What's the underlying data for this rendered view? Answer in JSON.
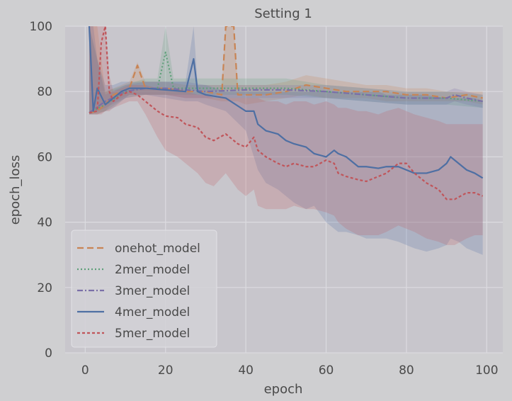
{
  "chart_data": {
    "type": "line",
    "title": "Setting 1",
    "xlabel": "epoch",
    "ylabel": "epoch_loss",
    "xlim": [
      -5,
      104
    ],
    "ylim": [
      0,
      100
    ],
    "xticks": [
      0,
      20,
      40,
      60,
      80,
      100
    ],
    "yticks": [
      0,
      20,
      40,
      60,
      80,
      100
    ],
    "grid": true,
    "legend_position": "lower-left",
    "series": [
      {
        "name": "onehot_model",
        "color": "#c88454",
        "dash": "dashed",
        "x": [
          1,
          3,
          5,
          7,
          9,
          11,
          13,
          15,
          17,
          20,
          25,
          30,
          34,
          35,
          36,
          37,
          38,
          40,
          45,
          50,
          55,
          60,
          65,
          70,
          75,
          80,
          85,
          90,
          95,
          99
        ],
        "y": [
          73.5,
          74,
          76,
          79,
          80,
          81,
          88,
          81,
          81,
          81,
          80,
          80,
          79,
          100,
          100,
          100,
          79,
          79,
          79,
          80,
          82,
          81,
          80,
          80,
          80,
          79,
          79,
          78,
          79,
          78
        ],
        "band_upper": [
          100,
          100,
          80,
          81,
          82,
          83,
          89,
          83,
          83,
          83,
          82,
          82,
          82,
          100,
          100,
          100,
          82,
          82,
          82,
          83,
          85,
          84,
          83,
          82,
          82,
          81,
          81,
          80,
          80,
          80
        ],
        "band_lower": [
          73,
          73,
          74,
          77,
          78,
          79,
          79,
          79,
          79,
          79,
          78,
          78,
          77,
          77,
          77,
          77,
          77,
          76,
          77,
          78,
          79,
          78,
          78,
          78,
          77,
          77,
          77,
          77,
          77,
          76
        ]
      },
      {
        "name": "2mer_model",
        "color": "#5fa07a",
        "dash": "dotted",
        "x": [
          1,
          5,
          10,
          15,
          18,
          20,
          22,
          25,
          30,
          40,
          50,
          60,
          70,
          80,
          90,
          99
        ],
        "y": [
          73.5,
          76,
          80,
          81,
          81,
          92,
          81,
          81,
          81,
          81,
          81,
          80,
          79,
          78,
          78,
          77
        ],
        "band_upper": [
          100,
          80,
          82,
          84,
          84,
          100,
          84,
          84,
          84,
          84,
          84,
          82,
          81,
          80,
          80,
          79
        ],
        "band_lower": [
          73,
          74,
          78,
          79,
          79,
          79,
          79,
          79,
          79,
          79,
          79,
          78,
          77,
          76,
          76,
          75
        ]
      },
      {
        "name": "3mer_model",
        "color": "#7a6fa8",
        "dash": "dashdot",
        "x": [
          1,
          5,
          10,
          15,
          20,
          25,
          30,
          40,
          50,
          60,
          70,
          80,
          90,
          92,
          95,
          99
        ],
        "y": [
          73.5,
          77,
          80,
          81,
          81,
          80.5,
          80,
          80.5,
          80.5,
          80,
          79,
          78,
          78,
          79,
          78,
          77
        ],
        "band_upper": [
          100,
          79,
          82,
          83,
          83,
          83,
          82,
          82,
          82,
          82,
          81,
          80,
          80,
          81,
          80,
          79
        ],
        "band_lower": [
          73,
          75,
          78,
          79,
          79,
          78,
          78,
          78,
          78,
          78,
          77,
          76,
          76,
          77,
          76,
          75
        ]
      },
      {
        "name": "4mer_model",
        "color": "#4e6fa3",
        "dash": "solid",
        "x": [
          1,
          2,
          3,
          5,
          7,
          9,
          11,
          13,
          15,
          20,
          25,
          27,
          28,
          30,
          35,
          40,
          42,
          43,
          45,
          48,
          50,
          52,
          55,
          57,
          60,
          62,
          63,
          65,
          68,
          70,
          73,
          75,
          78,
          80,
          82,
          85,
          88,
          90,
          91,
          93,
          95,
          97,
          99
        ],
        "y": [
          100,
          74,
          81,
          76,
          78,
          80,
          81,
          81,
          81,
          80.5,
          80,
          90,
          80,
          79,
          78,
          74,
          74,
          70,
          68,
          67,
          65,
          64,
          63,
          61,
          60,
          62,
          61,
          60,
          57,
          57,
          56.5,
          57,
          57,
          56,
          55,
          55,
          56,
          58,
          60,
          58,
          56,
          55,
          53.5
        ],
        "band_upper": [
          100,
          100,
          90,
          82,
          82,
          83,
          83,
          83,
          83,
          83,
          83,
          100,
          82,
          82,
          80,
          80,
          80,
          80,
          80,
          80,
          80,
          80,
          80,
          80,
          80,
          80,
          80,
          80,
          80,
          80,
          80,
          79,
          79,
          79,
          79,
          79,
          78,
          78,
          78,
          78,
          78,
          78,
          77
        ],
        "band_lower": [
          73,
          73,
          73,
          74,
          75,
          77,
          79,
          79,
          79,
          78,
          77,
          77,
          77,
          76,
          74,
          68,
          60,
          56,
          52,
          50,
          48,
          46,
          44,
          45,
          40,
          38,
          37,
          37,
          36,
          35,
          35,
          35,
          34,
          33,
          32,
          31,
          32,
          33,
          35,
          34,
          32,
          31,
          30
        ]
      },
      {
        "name": "5mer_model",
        "color": "#c0555a",
        "dash": "densedash",
        "x": [
          1,
          3,
          4,
          5,
          6,
          7,
          9,
          11,
          13,
          15,
          18,
          20,
          23,
          25,
          28,
          30,
          32,
          35,
          38,
          40,
          42,
          43,
          45,
          48,
          50,
          52,
          55,
          57,
          60,
          62,
          63,
          65,
          68,
          70,
          73,
          75,
          78,
          80,
          82,
          85,
          88,
          90,
          92,
          95,
          97,
          99
        ],
        "y": [
          73.5,
          74,
          95,
          100,
          80,
          77,
          79,
          80,
          79,
          77,
          74,
          72.5,
          72,
          70,
          69,
          66,
          65,
          67,
          64,
          63,
          66,
          62,
          60,
          58,
          57,
          58,
          57,
          57,
          59,
          58,
          55,
          54,
          53,
          52.5,
          54,
          55,
          58,
          58,
          55,
          52,
          50,
          47,
          47,
          49,
          49,
          48
        ],
        "band_upper": [
          100,
          100,
          100,
          100,
          85,
          80,
          81,
          82,
          82,
          82,
          81,
          81,
          80,
          80,
          79,
          79,
          78,
          78,
          78,
          78,
          78,
          78,
          77,
          77,
          76,
          77,
          77,
          76,
          77,
          76,
          75,
          75,
          74,
          74,
          73,
          74,
          75,
          74,
          73,
          72,
          71,
          70,
          70,
          70,
          70,
          70
        ],
        "band_lower": [
          73,
          73,
          73,
          74,
          74,
          75,
          76,
          77,
          77,
          73,
          66,
          62,
          60,
          58,
          55,
          52,
          51,
          55,
          50,
          48,
          50,
          45,
          44,
          44,
          44,
          45,
          44,
          44,
          43,
          42,
          40,
          38,
          36,
          36,
          36,
          37,
          39,
          38,
          37,
          35,
          34,
          33,
          33,
          35,
          36,
          36
        ]
      }
    ]
  }
}
